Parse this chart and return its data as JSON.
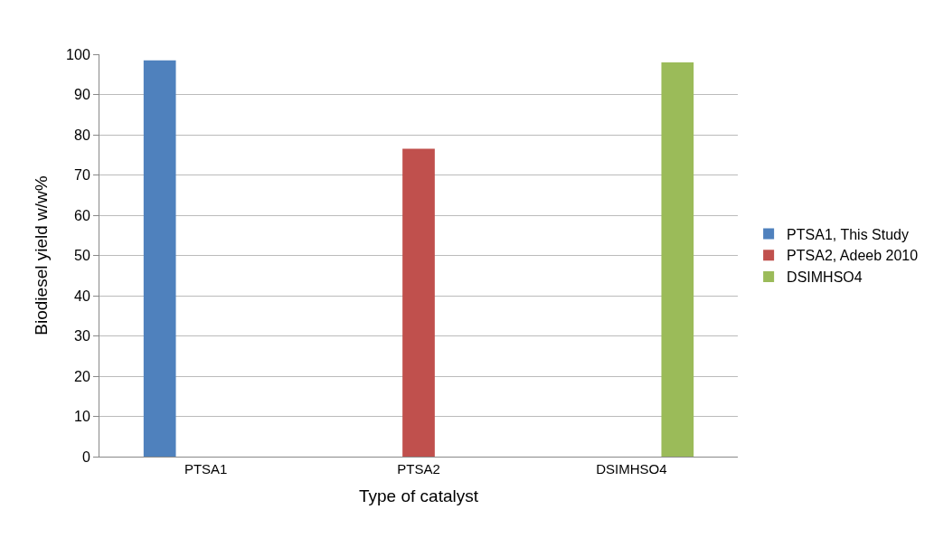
{
  "chart_data": {
    "type": "bar",
    "xlabel": "Type of catalyst",
    "ylabel": "Biodiesel yield w/w%",
    "categories": [
      "PTSA1",
      "PTSA2",
      "DSIMHSO4"
    ],
    "series": [
      {
        "name": "PTSA1, This Study",
        "color": "#4f81bd",
        "values": [
          98.5,
          null,
          null
        ]
      },
      {
        "name": "PTSA2, Adeeb 2010",
        "color": "#c0504d",
        "values": [
          null,
          76.5,
          null
        ]
      },
      {
        "name": "DSIMHSO4",
        "color": "#9bbb59",
        "values": [
          null,
          null,
          98.0
        ]
      }
    ],
    "ylim": [
      0,
      100
    ],
    "yticks": [
      0,
      10,
      20,
      30,
      40,
      50,
      60,
      70,
      80,
      90,
      100
    ],
    "grid": "y",
    "legend": "right"
  }
}
